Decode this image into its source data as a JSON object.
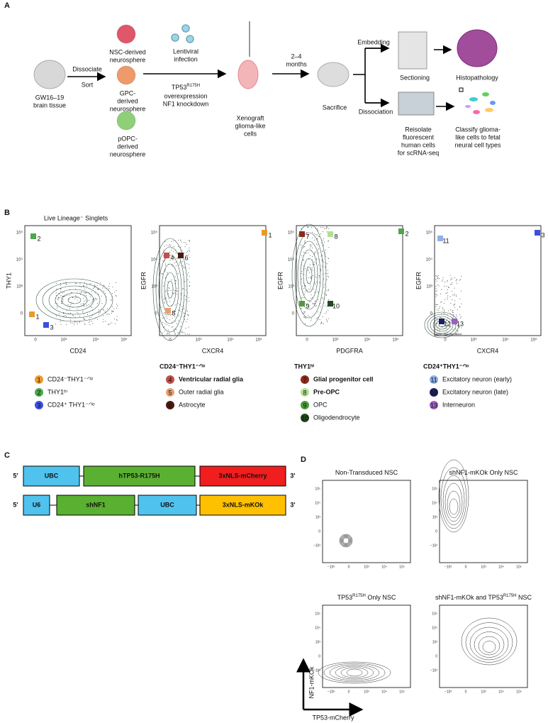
{
  "panel_a": {
    "label": "A",
    "source": {
      "lines": [
        "GW16–19",
        "brain tissue"
      ]
    },
    "step1": {
      "above": "Dissociate",
      "below": "Sort"
    },
    "neurospheres": [
      {
        "lines": [
          "NSC-derived",
          "neurosphere"
        ],
        "color": "#e0566b"
      },
      {
        "lines": [
          "GPC-",
          "derived",
          "neurosphere"
        ],
        "color": "#ee9a6a"
      },
      {
        "lines": [
          "pOPC-",
          "derived",
          "neurosphere"
        ],
        "color": "#8fcf78"
      }
    ],
    "infection": {
      "lines": [
        "Lentiviral",
        "infection"
      ]
    },
    "modification": {
      "parts": [
        {
          "text": "TP53"
        },
        {
          "text": "R175H",
          "sup": true
        }
      ],
      "lines": [
        "overexpression",
        "NF1 knockdown"
      ]
    },
    "xenograft": {
      "lines": [
        "Xenograft",
        "glioma-like",
        "cells"
      ]
    },
    "duration": {
      "lines": [
        "2–4",
        "months"
      ]
    },
    "sacrifice": "Sacrifice",
    "embedding": "Embedding",
    "dissociation": "Dissociation",
    "sectioning": "Sectioning",
    "histopathology": "Histopathology",
    "reisolate": {
      "lines": [
        "Reisolate",
        "fluorescent",
        "human cells",
        "for scRNA-seq"
      ]
    },
    "classify": {
      "lines": [
        "Classify glioma-",
        "like cells to fetal",
        "neural cell types"
      ]
    }
  },
  "panel_b": {
    "label": "B",
    "title": "Live Lineage⁻ Singlets",
    "plots": [
      {
        "x_label": "CD24",
        "y_label": "THY1",
        "x_ticks": [
          "0",
          "10³",
          "10⁴",
          "10⁵"
        ],
        "y_ticks": [
          "10⁵",
          "10⁴",
          "10³",
          "0"
        ],
        "gates": [
          {
            "label": "1",
            "color": "#e99a2c"
          },
          {
            "label": "2",
            "color": "#4aa84a"
          },
          {
            "label": "3",
            "color": "#3b4fe0"
          }
        ]
      },
      {
        "x_label": "CXCR4",
        "y_label": "EGFR",
        "x_ticks": [
          "0",
          "10³",
          "10⁴",
          "10⁵"
        ],
        "y_ticks": [
          "10⁵",
          "10⁴",
          "10³",
          "0"
        ],
        "gates": [
          {
            "label": "4",
            "color": "#c0504d"
          },
          {
            "label": "5",
            "color": "#e8a070"
          },
          {
            "label": "6",
            "color": "#4a1a10"
          },
          {
            "label": "1",
            "color": "#e99a2c"
          }
        ]
      },
      {
        "x_label": "PDGFRA",
        "y_label": "EGFR",
        "x_ticks": [
          "0",
          "10³",
          "10⁴",
          "10⁵"
        ],
        "y_ticks": [
          "10⁵",
          "10⁴",
          "10³",
          "0"
        ],
        "gates": [
          {
            "label": "7",
            "color": "#8b2a1a"
          },
          {
            "label": "8",
            "color": "#b0e090"
          },
          {
            "label": "9",
            "color": "#4f9a3a"
          },
          {
            "label": "10",
            "color": "#1e4a20"
          },
          {
            "label": "2",
            "color": "#4aa84a"
          }
        ]
      },
      {
        "x_label": "CXCR4",
        "y_label": "EGFR",
        "x_ticks": [
          "0",
          "10³",
          "10⁴",
          "10⁵"
        ],
        "y_ticks": [
          "10⁵",
          "10⁴",
          "10³",
          "0"
        ],
        "gates": [
          {
            "label": "11",
            "color": "#8fb0e8"
          },
          {
            "label": "12",
            "color": "#1a2060"
          },
          {
            "label": "13",
            "color": "#9a60c0"
          },
          {
            "label": "3",
            "color": "#3b4fe0"
          }
        ]
      }
    ],
    "legends": [
      {
        "items": [
          {
            "number": "1",
            "text": "CD24⁻THY1⁻ᐟˡᵒ",
            "color": "#e99a2c"
          },
          {
            "number": "2",
            "text": "THY1ʰⁱ",
            "color": "#4aa84a"
          },
          {
            "number": "3",
            "text": "CD24⁺ THY1⁻ᐟˡᵒ",
            "color": "#3b4fe0"
          }
        ]
      },
      {
        "header": "CD24⁻THY1⁻ᐟˡᵒ",
        "items": [
          {
            "number": "4",
            "text": "Ventricular radial glia",
            "color": "#c0504d",
            "bold": true
          },
          {
            "number": "5",
            "text": "Outer radial glia",
            "color": "#e8a070"
          },
          {
            "number": "6",
            "text": "Astrocyte",
            "color": "#4a1a10"
          }
        ]
      },
      {
        "header": "THY1ʰⁱ",
        "items": [
          {
            "number": "7",
            "text": "Glial progenitor cell",
            "color": "#8b2a1a",
            "bold": true
          },
          {
            "number": "8",
            "text": "Pre-OPC",
            "color": "#b0e090",
            "bold": true
          },
          {
            "number": "9",
            "text": "OPC",
            "color": "#4f9a3a"
          },
          {
            "number": "10",
            "text": "Oligodendrocyte",
            "color": "#1e4a20"
          }
        ]
      },
      {
        "header": "CD24⁺THY1⁻ᐟˡᵒ",
        "items": [
          {
            "number": "11",
            "text": "Excitatory neuron (early)",
            "color": "#8fb0e8"
          },
          {
            "number": "12",
            "text": "Excitatory neuron (late)",
            "color": "#1a2060"
          },
          {
            "number": "13",
            "text": "Interneuron",
            "color": "#9a60c0"
          }
        ]
      }
    ]
  },
  "panel_c": {
    "label": "C",
    "constructs": [
      {
        "left": "5'",
        "right": "3'",
        "elements": [
          {
            "text": "UBC",
            "color": "#4fc3ee"
          },
          {
            "text": "hTP53-R175H",
            "color": "#5ab030"
          },
          {
            "text": "3xNLS-mCherry",
            "color": "#f01e1e"
          }
        ]
      },
      {
        "left": "5'",
        "right": "3'",
        "elements": [
          {
            "text": "U6",
            "color": "#4fc3ee"
          },
          {
            "text": "shNF1",
            "color": "#5ab030"
          },
          {
            "text": "UBC",
            "color": "#4fc3ee"
          },
          {
            "text": "3xNLS-mKOk",
            "color": "#ffc000"
          }
        ]
      }
    ]
  },
  "panel_d": {
    "label": "D",
    "y_axis": "NF1-mKOk",
    "x_axis": "TP53-mCherry",
    "x_ticks": [
      "−10³",
      "0",
      "10³",
      "10⁴",
      "10⁵"
    ],
    "y_ticks": [
      "10⁵",
      "10⁴",
      "10³",
      "0",
      "−10³"
    ],
    "plots": [
      {
        "title": [
          {
            "text": "Non-Transduced NSC"
          }
        ]
      },
      {
        "title": [
          {
            "text": "shNF1-mKOk Only NSC"
          }
        ]
      },
      {
        "title": [
          {
            "text": "TP53"
          },
          {
            "text": "R175H",
            "sup": true
          },
          {
            "text": " Only NSC"
          }
        ]
      },
      {
        "title": [
          {
            "text": "shNF1-mKOk and TP53"
          },
          {
            "text": "R175H",
            "sup": true
          },
          {
            "text": " NSC"
          }
        ]
      }
    ]
  }
}
